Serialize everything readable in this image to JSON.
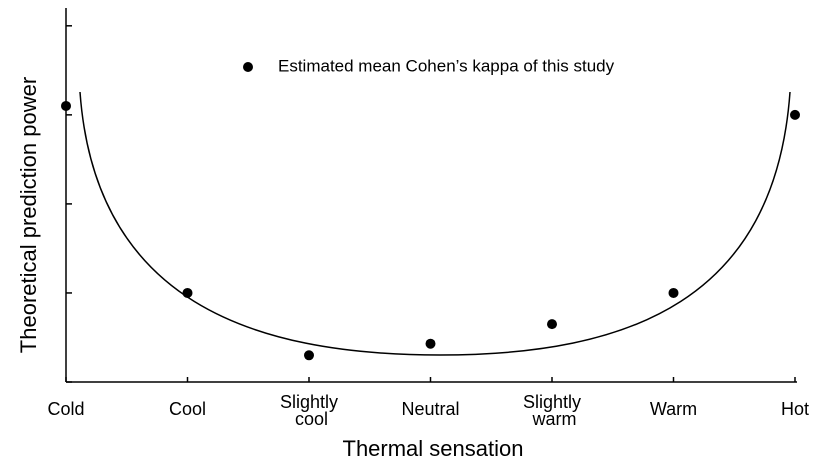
{
  "chart_data": {
    "type": "scatter",
    "x_label": "Thermal sensation",
    "y_label": "Theoretical prediction power",
    "categories": [
      "Cold",
      "Cool",
      "Slightly cool",
      "Neutral",
      "Slightly warm",
      "Warm",
      "Hot"
    ],
    "series": [
      {
        "name": "Estimated mean Cohen’s kappa of this study",
        "color": "#000000",
        "values": [
          3.1,
          1.0,
          0.3,
          0.43,
          0.65,
          1.0,
          3.0
        ]
      }
    ],
    "ylim": [
      0,
      4.2
    ],
    "yticks": [
      0,
      1,
      2,
      3,
      4
    ]
  }
}
